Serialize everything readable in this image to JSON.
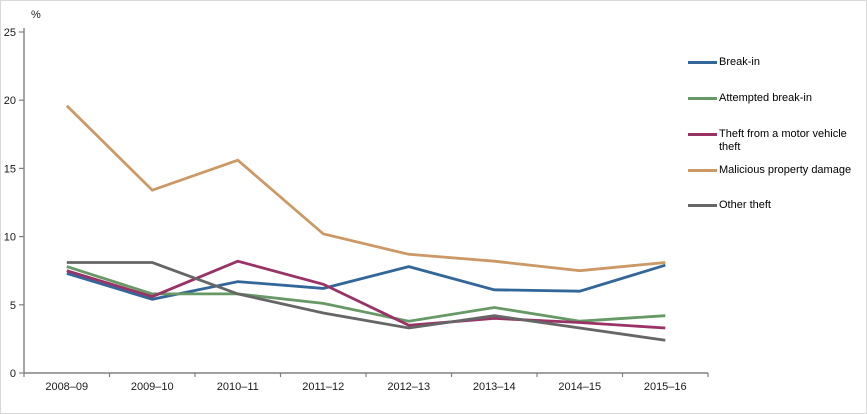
{
  "window": {
    "background_color": "#ffffff",
    "border_color": "#d9d9d9",
    "axis_color": "#808080",
    "text_color": "#1a1a1a"
  },
  "chart_data": {
    "type": "line",
    "title": "",
    "xlabel": "",
    "ylabel": "%",
    "ylim": [
      0,
      25
    ],
    "yticks": [
      0,
      5,
      10,
      15,
      20,
      25
    ],
    "grid": false,
    "legend_position": "right",
    "categories": [
      "2008–09",
      "2009–10",
      "2010–11",
      "2011–12",
      "2012–13",
      "2013–14",
      "2014–15",
      "2015–16"
    ],
    "series": [
      {
        "name": "Break-in",
        "color": "#336699",
        "values": [
          7.3,
          5.4,
          6.7,
          6.2,
          7.8,
          6.1,
          6.0,
          7.9
        ]
      },
      {
        "name": "Attempted break-in",
        "color": "#669966",
        "values": [
          7.8,
          5.8,
          5.8,
          5.1,
          3.8,
          4.8,
          3.8,
          4.2
        ]
      },
      {
        "name": "Theft from a motor vehicle theft",
        "color": "#993366",
        "values": [
          7.5,
          5.6,
          8.2,
          6.5,
          3.5,
          4.0,
          3.7,
          3.3
        ]
      },
      {
        "name": "Malicious property damage",
        "color": "#CC9966",
        "values": [
          19.6,
          13.4,
          15.6,
          10.2,
          8.7,
          8.2,
          7.5,
          8.1
        ]
      },
      {
        "name": "Other theft",
        "color": "#666666",
        "values": [
          8.1,
          8.1,
          5.8,
          4.4,
          3.3,
          4.2,
          3.3,
          2.4
        ]
      }
    ]
  }
}
